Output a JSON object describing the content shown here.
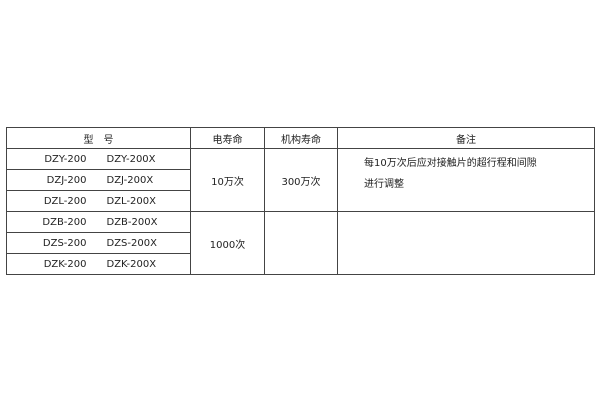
{
  "headers": {
    "model": "型　号",
    "electrical_life": "电寿命",
    "mechanical_life": "机构寿命",
    "remarks": "备注"
  },
  "rows": [
    {
      "model_a": "DZY-200",
      "model_b": "DZY-200X"
    },
    {
      "model_a": "DZJ-200",
      "model_b": "DZJ-200X"
    },
    {
      "model_a": "DZL-200",
      "model_b": "DZL-200X"
    },
    {
      "model_a": "DZB-200",
      "model_b": "DZB-200X"
    },
    {
      "model_a": "DZS-200",
      "model_b": "DZS-200X"
    },
    {
      "model_a": "DZK-200",
      "model_b": "DZK-200X"
    }
  ],
  "groups": [
    {
      "electrical_life": "10万次",
      "mechanical_life": "300万次",
      "remarks": [
        "每10万次后应对接触片的超行程和间隙",
        "进行调整"
      ]
    },
    {
      "electrical_life": "1000次",
      "mechanical_life": "",
      "remarks": []
    }
  ]
}
